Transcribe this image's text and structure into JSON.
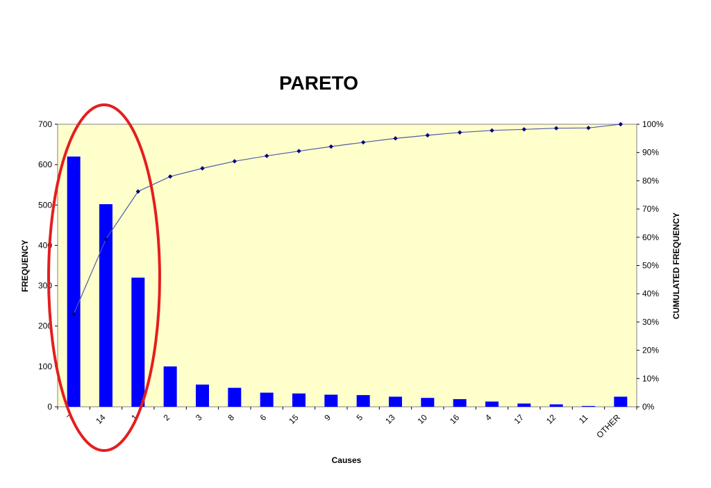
{
  "chart_data": {
    "type": "bar",
    "title": "PARETO",
    "xlabel": "Causes",
    "ylabel": "FREQUENCY",
    "y2label": "CUMULATED FREQUENCY",
    "ylim": [
      0,
      700
    ],
    "y2lim": [
      0,
      100
    ],
    "yticks": [
      "0",
      "100",
      "200",
      "300",
      "400",
      "500",
      "600",
      "700"
    ],
    "y2ticks": [
      "0%",
      "10%",
      "20%",
      "30%",
      "40%",
      "50%",
      "60%",
      "70%",
      "80%",
      "90%",
      "100%"
    ],
    "categories": [
      "7",
      "14",
      "1",
      "2",
      "3",
      "8",
      "6",
      "15",
      "9",
      "5",
      "13",
      "10",
      "16",
      "4",
      "17",
      "12",
      "11",
      "OTHER"
    ],
    "series": [
      {
        "type": "bar",
        "values": [
          620,
          502,
          320,
          100,
          55,
          47,
          35,
          33,
          30,
          29,
          25,
          22,
          19,
          13,
          8,
          6,
          2,
          25
        ]
      },
      {
        "type": "line",
        "axis": "right",
        "values": [
          32.8,
          59.3,
          76.2,
          81.5,
          84.4,
          86.9,
          88.8,
          90.5,
          92.1,
          93.6,
          95.0,
          96.1,
          97.1,
          97.8,
          98.2,
          98.6,
          98.7,
          100.0
        ]
      }
    ],
    "grid": false,
    "legend": "none",
    "colors": {
      "plot_background": "#ffffcc",
      "bar": "#0000ff",
      "line": "#4d5ca8",
      "marker": "#000080",
      "highlight_ellipse": "#e41e1e"
    }
  }
}
